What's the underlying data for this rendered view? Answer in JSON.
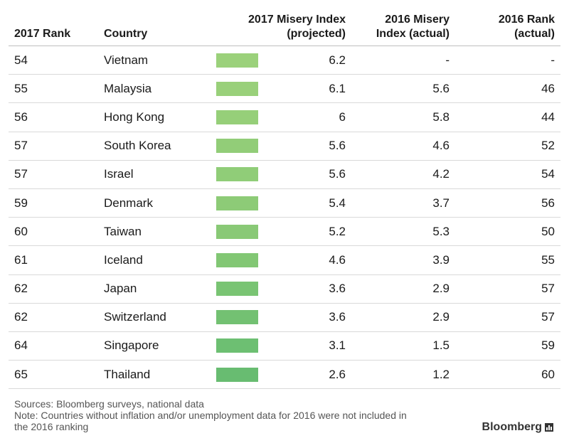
{
  "chart_data": {
    "type": "table",
    "columns": [
      "2017 Rank",
      "Country",
      "2017 Misery Index (projected)",
      "2016 Misery Index (actual)",
      "2016 Rank (actual)"
    ],
    "header": {
      "rank2017": "2017 Rank",
      "country": "Country",
      "proj_line1": "2017 Misery Index",
      "proj_line2": "(projected)",
      "actual_line1": "2016 Misery",
      "actual_line2": "Index (actual)",
      "rank2016_line1": "2016 Rank",
      "rank2016_line2": "(actual)"
    },
    "rows": [
      {
        "rank2017": "54",
        "country": "Vietnam",
        "proj": "6.2",
        "actual2016": "-",
        "rank2016": "-"
      },
      {
        "rank2017": "55",
        "country": "Malaysia",
        "proj": "6.1",
        "actual2016": "5.6",
        "rank2016": "46"
      },
      {
        "rank2017": "56",
        "country": "Hong Kong",
        "proj": "6",
        "actual2016": "5.8",
        "rank2016": "44"
      },
      {
        "rank2017": "57",
        "country": "South Korea",
        "proj": "5.6",
        "actual2016": "4.6",
        "rank2016": "52"
      },
      {
        "rank2017": "57",
        "country": "Israel",
        "proj": "5.6",
        "actual2016": "4.2",
        "rank2016": "54"
      },
      {
        "rank2017": "59",
        "country": "Denmark",
        "proj": "5.4",
        "actual2016": "3.7",
        "rank2016": "56"
      },
      {
        "rank2017": "60",
        "country": "Taiwan",
        "proj": "5.2",
        "actual2016": "5.3",
        "rank2016": "50"
      },
      {
        "rank2017": "61",
        "country": "Iceland",
        "proj": "4.6",
        "actual2016": "3.9",
        "rank2016": "55"
      },
      {
        "rank2017": "62",
        "country": "Japan",
        "proj": "3.6",
        "actual2016": "2.9",
        "rank2016": "57"
      },
      {
        "rank2017": "62",
        "country": "Switzerland",
        "proj": "3.6",
        "actual2016": "2.9",
        "rank2016": "57"
      },
      {
        "rank2017": "64",
        "country": "Singapore",
        "proj": "3.1",
        "actual2016": "1.5",
        "rank2016": "59"
      },
      {
        "rank2017": "65",
        "country": "Thailand",
        "proj": "2.6",
        "actual2016": "1.2",
        "rank2016": "60"
      }
    ],
    "bar_colors": [
      "#9bd17b",
      "#99d07a",
      "#96cf79",
      "#92cd78",
      "#90cd78",
      "#8dcb77",
      "#89c976",
      "#82c774",
      "#79c473",
      "#73c172",
      "#6dbf72",
      "#68bc71"
    ]
  },
  "footer": {
    "sources": "Sources: Bloomberg surveys, national data",
    "note_line1": "Note: Countries without inflation and/or unemployment data for 2016 were not included in",
    "note_line2": "the 2016 ranking",
    "brand": "Bloomberg"
  }
}
